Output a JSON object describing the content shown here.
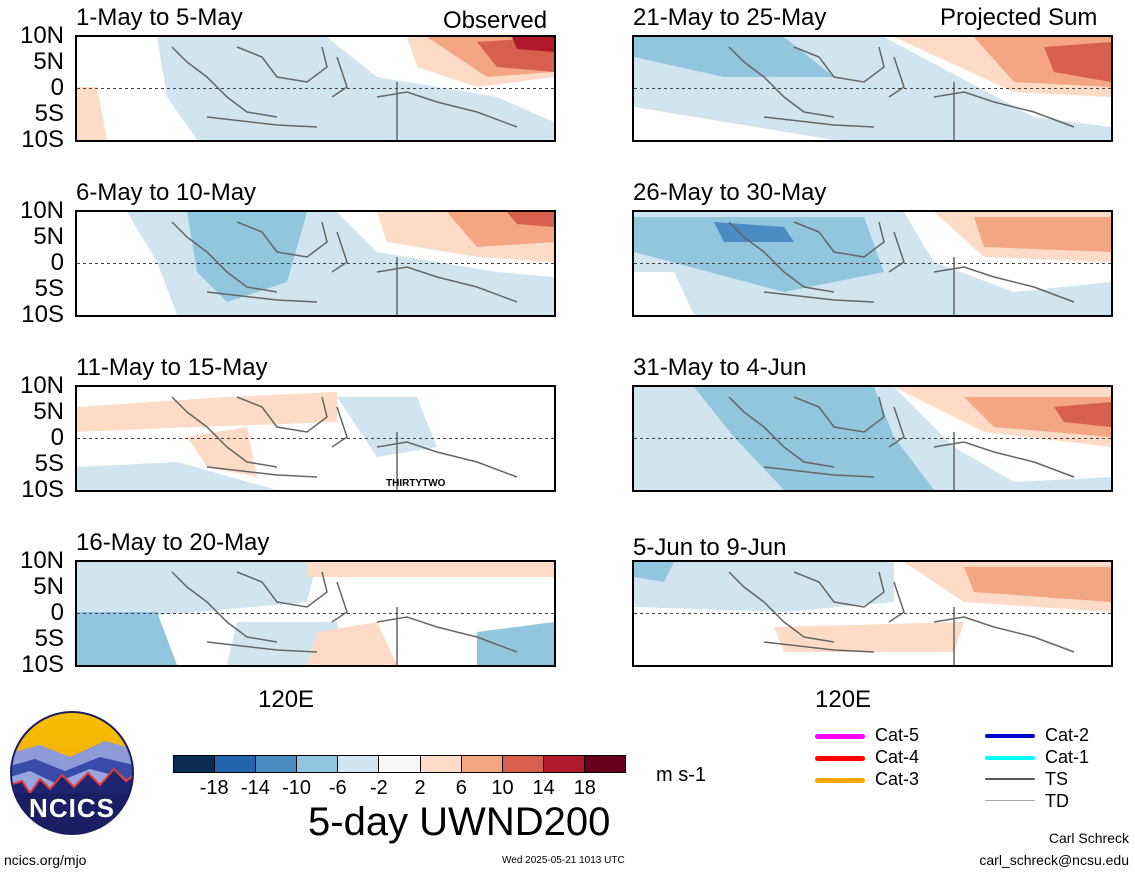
{
  "panels_left": [
    {
      "title": "1-May to 5-May",
      "tag": "Observed"
    },
    {
      "title": "6-May to 10-May",
      "tag": ""
    },
    {
      "title": "11-May to 15-May",
      "tag": ""
    },
    {
      "title": "16-May to 20-May",
      "tag": ""
    }
  ],
  "panels_right": [
    {
      "title": "21-May to 25-May",
      "tag": "Projected Sum"
    },
    {
      "title": "26-May to 30-May",
      "tag": ""
    },
    {
      "title": "31-May to 4-Jun",
      "tag": ""
    },
    {
      "title": "5-Jun to 9-Jun",
      "tag": ""
    }
  ],
  "y_labels": [
    "10N",
    "5N",
    "0",
    "5S",
    "10S"
  ],
  "x_label": "120E",
  "storm_label": "THIRTYTWO",
  "colorbar": {
    "ticks": [
      "-18",
      "-14",
      "-10",
      "-6",
      "-2",
      "2",
      "6",
      "10",
      "14",
      "18"
    ],
    "colors": [
      "#0c2d52",
      "#2166ac",
      "#4a8bc4",
      "#92c5de",
      "#d1e5f0",
      "#f7f7f7",
      "#fddbc7",
      "#f4a582",
      "#d6604d",
      "#b2182b",
      "#67001f"
    ],
    "units": "m s-1"
  },
  "title": "5-day UWND200",
  "legend": [
    {
      "label": "Cat-5",
      "color": "#ff00ff"
    },
    {
      "label": "Cat-4",
      "color": "#ff0000"
    },
    {
      "label": "Cat-3",
      "color": "#ffa500"
    },
    {
      "label": "Cat-2",
      "color": "#0000cc"
    },
    {
      "label": "Cat-1",
      "color": "#00ffff"
    },
    {
      "label": "TS",
      "color": "#555555"
    },
    {
      "label": "TD",
      "color": "#aaaaaa"
    }
  ],
  "logo_text": "NCICS",
  "footer": {
    "url": "ncics.org/mjo",
    "timestamp": "Wed 2025-05-21 1013 UTC",
    "author": "Carl Schreck",
    "email": "carl_schreck@ncsu.edu"
  }
}
